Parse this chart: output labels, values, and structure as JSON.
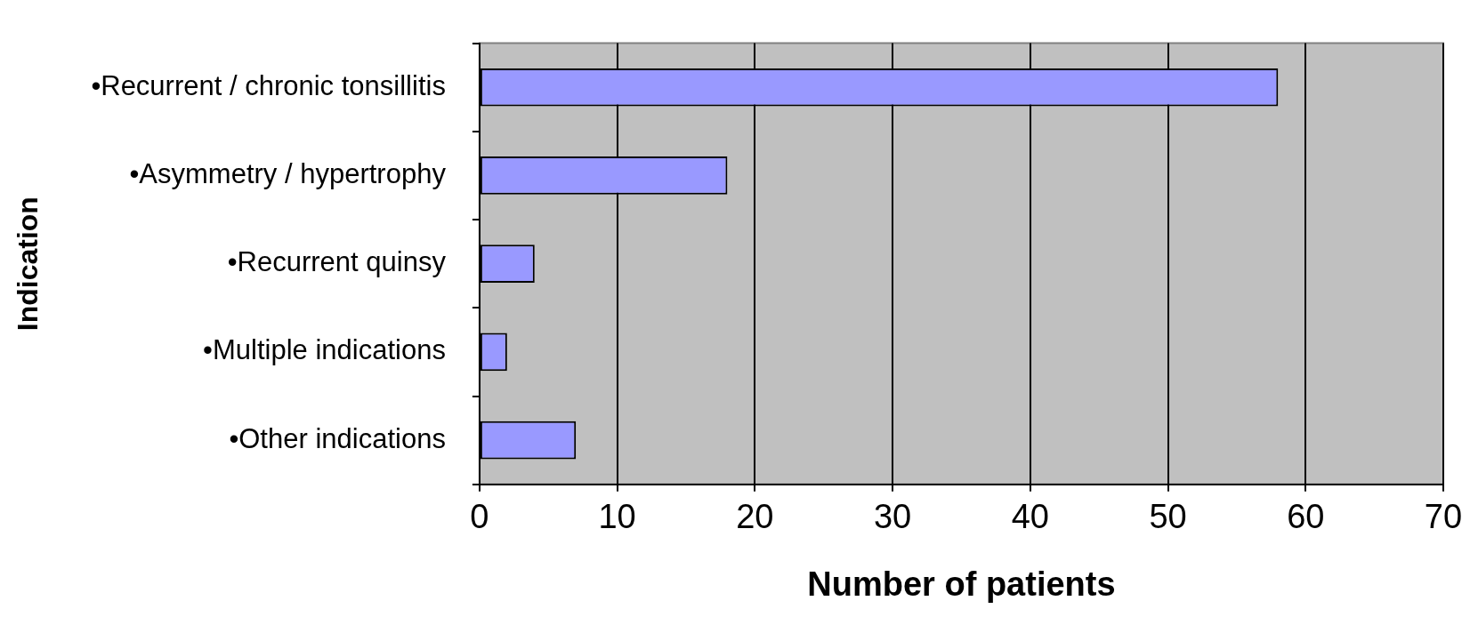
{
  "chart_data": {
    "type": "bar",
    "orientation": "horizontal",
    "categories": [
      "•Recurrent / chronic tonsillitis",
      "•Asymmetry / hypertrophy",
      "•Recurrent quinsy",
      "•Multiple indications",
      "•Other indications"
    ],
    "values": [
      58,
      18,
      4,
      2,
      7
    ],
    "color": "#9999ff",
    "xlim": [
      0,
      70
    ],
    "xticks": [
      0,
      10,
      20,
      30,
      40,
      50,
      60,
      70
    ],
    "xlabel": "Number of patients",
    "ylabel": "Indication",
    "grid": "x"
  }
}
